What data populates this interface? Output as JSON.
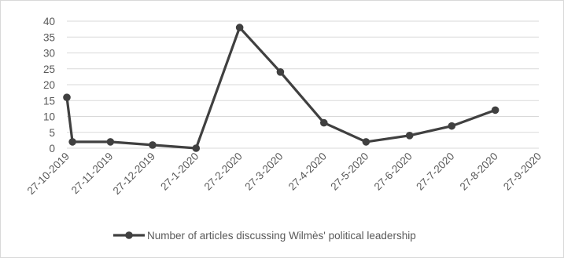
{
  "chart_data": {
    "type": "line",
    "x_type": "date",
    "x_ticks": [
      "27-10-2019",
      "27-11-2019",
      "27-12-2019",
      "27-1-2020",
      "27-2-2020",
      "27-3-2020",
      "27-4-2020",
      "27-5-2020",
      "27-6-2020",
      "27-7-2020",
      "27-8-2020",
      "27-9-2020"
    ],
    "xlim": [
      "2019-10-27",
      "2020-09-27"
    ],
    "ylim": [
      0,
      40
    ],
    "y_ticks": [
      0,
      5,
      10,
      15,
      20,
      25,
      30,
      35,
      40
    ],
    "grid": {
      "horizontal": true,
      "vertical": false
    },
    "legend_position": "bottom",
    "series": [
      {
        "name": "Number of articles discussing Wilmès' political leadership",
        "color": "#404040",
        "points": [
          {
            "x": "2019-10-27",
            "y": 16
          },
          {
            "x": "2019-10-31",
            "y": 2
          },
          {
            "x": "2019-11-27",
            "y": 2
          },
          {
            "x": "2019-12-27",
            "y": 1
          },
          {
            "x": "2020-01-27",
            "y": 0
          },
          {
            "x": "2020-02-27",
            "y": 38
          },
          {
            "x": "2020-03-27",
            "y": 24
          },
          {
            "x": "2020-04-27",
            "y": 8
          },
          {
            "x": "2020-05-27",
            "y": 2
          },
          {
            "x": "2020-06-27",
            "y": 4
          },
          {
            "x": "2020-07-27",
            "y": 7
          },
          {
            "x": "2020-08-27",
            "y": 12
          }
        ]
      }
    ]
  }
}
